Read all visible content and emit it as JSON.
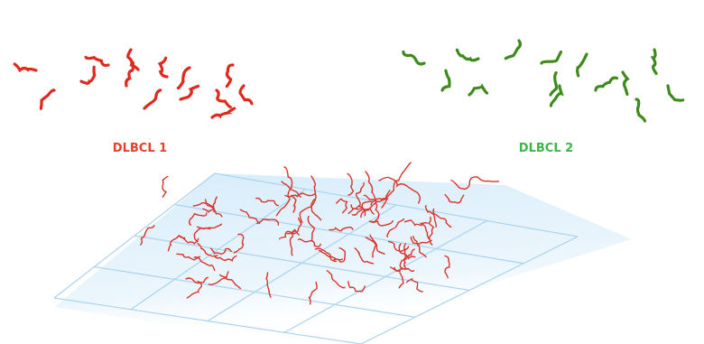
{
  "groups": [
    {
      "label": "DLBCL 1"
    },
    {
      "label": "DLBCL 2"
    }
  ]
}
